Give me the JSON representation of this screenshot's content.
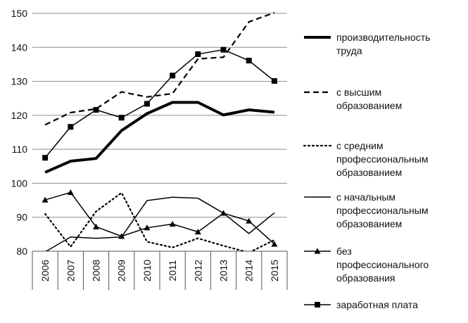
{
  "chart_data": {
    "type": "line",
    "x": [
      "2006",
      "2007",
      "2008",
      "2009",
      "2010",
      "2011",
      "2012",
      "2013",
      "2014",
      "2015"
    ],
    "ylim": [
      80,
      150
    ],
    "yticks": [
      80,
      90,
      100,
      110,
      120,
      130,
      140,
      150
    ],
    "grid": "horizontal",
    "legend_position": "right",
    "series": [
      {
        "name": "производительность труда",
        "style": "thick",
        "marker": "none",
        "values": [
          103.2,
          106.5,
          107.3,
          115.5,
          120.5,
          123.8,
          123.8,
          120.1,
          121.6,
          120.9
        ]
      },
      {
        "name": "с высшим образованием",
        "style": "dashed",
        "marker": "none",
        "values": [
          117.2,
          120.8,
          121.9,
          126.9,
          125.4,
          126.4,
          136.6,
          137.1,
          147.5,
          150.2
        ]
      },
      {
        "name": "с средним профессиональным образованием",
        "style": "dotted",
        "marker": "none",
        "values": [
          91.0,
          81.3,
          91.7,
          97.2,
          82.8,
          81.1,
          83.8,
          81.6,
          79.6,
          83.3
        ]
      },
      {
        "name": "с начальным профессиональным образованием",
        "style": "solid",
        "marker": "none",
        "values": [
          79.8,
          84.2,
          83.8,
          84.2,
          94.9,
          95.9,
          95.6,
          91.2,
          85.2,
          91.3
        ]
      },
      {
        "name": "без профессионального образования",
        "style": "solid",
        "marker": "triangle",
        "values": [
          95.1,
          97.3,
          87.2,
          84.4,
          86.9,
          88.0,
          85.7,
          91.2,
          88.9,
          82.1
        ]
      },
      {
        "name": "заработная плата",
        "style": "solid",
        "marker": "square",
        "values": [
          107.5,
          116.6,
          121.6,
          119.3,
          123.4,
          131.7,
          138.0,
          139.3,
          136.1,
          130.1
        ]
      }
    ]
  },
  "legend": {
    "items": [
      {
        "lines": [
          "производительность",
          "труда"
        ]
      },
      {
        "lines": [
          "с высшим",
          "образованием"
        ]
      },
      {
        "lines": [
          "с средним",
          "профессиональным",
          "образованием"
        ]
      },
      {
        "lines": [
          "с начальным",
          "профессиональным",
          "образованием"
        ]
      },
      {
        "lines": [
          "без",
          "профессионального",
          "образования"
        ]
      },
      {
        "lines": [
          "заработная плата"
        ]
      }
    ]
  }
}
